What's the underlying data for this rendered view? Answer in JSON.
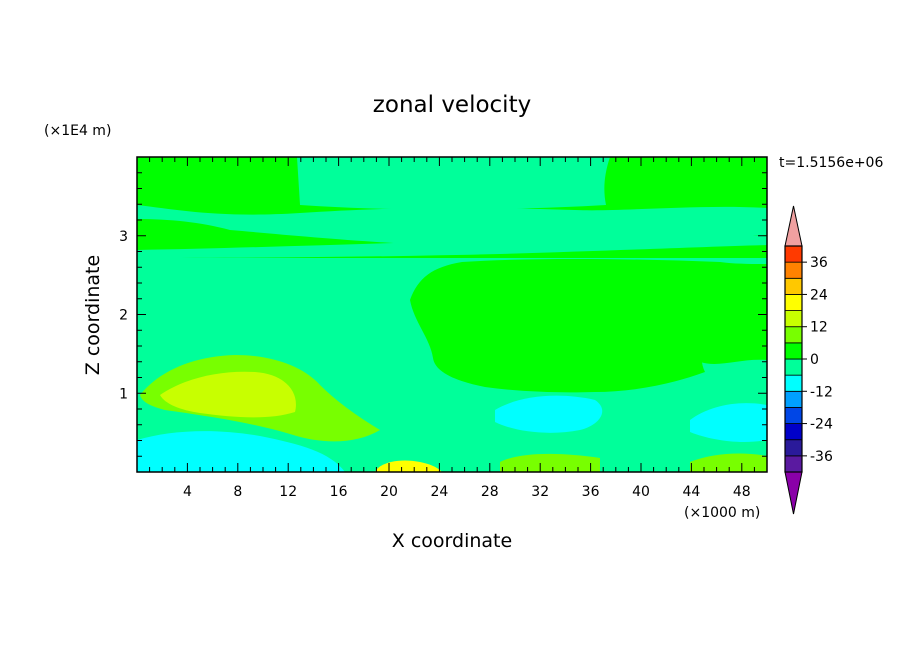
{
  "chart_data": {
    "type": "heatmap",
    "title": "zonal velocity",
    "xlabel": "X coordinate",
    "ylabel": "Z coordinate",
    "x_unit_label": "(×1000 m)",
    "y_unit_label": "(×1E4 m)",
    "time_label": "t=1.5156e+06",
    "xlim": [
      0,
      50
    ],
    "ylim": [
      0,
      4
    ],
    "x_ticks": [
      4,
      8,
      12,
      16,
      20,
      24,
      28,
      32,
      36,
      40,
      44,
      48
    ],
    "y_ticks": [
      1,
      2,
      3
    ],
    "colorbar": {
      "tick_labels": [
        "36",
        "24",
        "12",
        "0",
        "-12",
        "-24",
        "-36"
      ],
      "tick_values": [
        36,
        24,
        12,
        0,
        -12,
        -24,
        -36
      ],
      "levels": [
        -42,
        -36,
        -30,
        -24,
        -18,
        -12,
        -6,
        0,
        6,
        12,
        18,
        24,
        30,
        36,
        42
      ],
      "colors": [
        "#8a00a8",
        "#5a1aa0",
        "#2a1a9a",
        "#0000c8",
        "#0046e6",
        "#00a0ff",
        "#00ffff",
        "#00ff9a",
        "#00ff00",
        "#78ff00",
        "#c8ff00",
        "#ffff00",
        "#ffc800",
        "#ff8200",
        "#ff3a00",
        "#ff1400",
        "#f0a0a0"
      ]
    },
    "fields": [
      {
        "value": 2,
        "region": "background"
      },
      {
        "value": -3,
        "region": "upper band z 3.3-3.6"
      },
      {
        "value": -3,
        "region": "band z 2.75-3.0"
      },
      {
        "value": -3,
        "region": "upper left x 20-36 z 3.3-4"
      },
      {
        "value": -3,
        "region": "low levels z 0-1.5"
      },
      {
        "value": 8,
        "region": "x 2-18 z 0.5-1.4"
      },
      {
        "value": 12,
        "region": "x 5-14 z 0.7-1.2"
      },
      {
        "value": -10,
        "region": "x 0-20 z 0-0.4"
      },
      {
        "value": -10,
        "region": "x 28-38 z 0.5-0.9"
      },
      {
        "value": 10,
        "region": "x 20-22 z 0-0.1"
      }
    ]
  }
}
